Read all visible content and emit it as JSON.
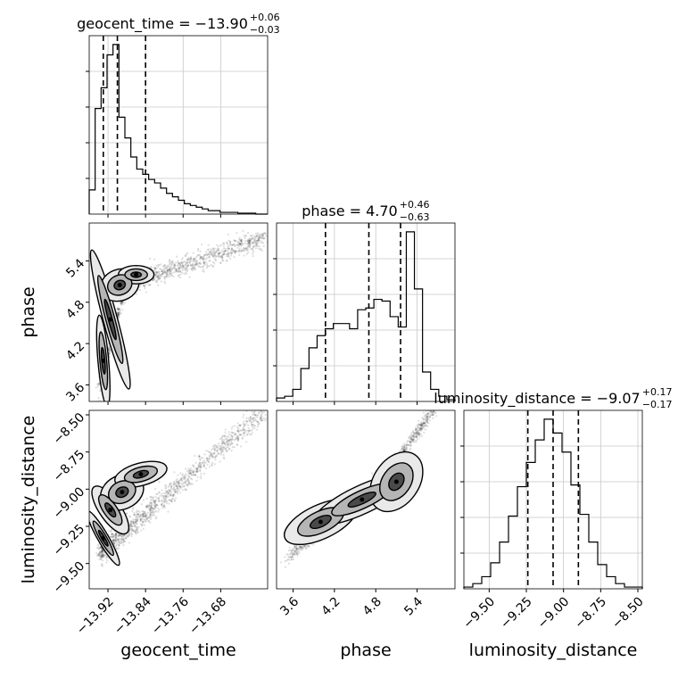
{
  "chart_data": {
    "type": "corner",
    "parameters": [
      "geocent_time",
      "phase",
      "luminosity_distance"
    ],
    "axis_labels": {
      "geocent_time": "geocent_time",
      "phase": "phase",
      "luminosity_distance": "luminosity_distance"
    },
    "ranges": {
      "geocent_time": [
        -13.96,
        -13.58
      ],
      "phase": [
        3.36,
        5.95
      ],
      "luminosity_distance": [
        -9.67,
        -8.47
      ]
    },
    "ticks": {
      "geocent_time": [
        -13.92,
        -13.84,
        -13.76,
        -13.68
      ],
      "phase": [
        3.6,
        4.2,
        4.8,
        5.4
      ],
      "luminosity_distance": [
        -9.5,
        -9.25,
        -9.0,
        -8.75,
        -8.5
      ]
    },
    "tick_labels": {
      "geocent_time": [
        "−13.92",
        "−13.84",
        "−13.76",
        "−13.68"
      ],
      "phase": [
        "3.6",
        "4.2",
        "4.8",
        "5.4"
      ],
      "luminosity_distance": [
        "−9.50",
        "−9.25",
        "−9.00",
        "−8.75",
        "−8.50"
      ]
    },
    "titles": {
      "geocent_time": {
        "text": "geocent_time = −13.90",
        "sup": "+0.06",
        "sub": "−0.03"
      },
      "phase": {
        "text": "phase = 4.70",
        "sup": "+0.46",
        "sub": "−0.63"
      },
      "luminosity_distance": {
        "text": "luminosity_distance = −9.07",
        "sup": "+0.17",
        "sub": "−0.17"
      }
    },
    "quantiles": {
      "geocent_time": [
        -13.93,
        -13.9,
        -13.84
      ],
      "phase": [
        4.07,
        4.7,
        5.16
      ],
      "luminosity_distance": [
        -9.24,
        -9.07,
        -8.9
      ]
    },
    "histograms": {
      "geocent_time": [
        0.14,
        0.61,
        0.73,
        0.92,
        0.98,
        0.56,
        0.44,
        0.33,
        0.26,
        0.23,
        0.2,
        0.18,
        0.15,
        0.12,
        0.1,
        0.08,
        0.06,
        0.05,
        0.04,
        0.03,
        0.02,
        0.02,
        0.01,
        0.01,
        0.01,
        0.005,
        0.005,
        0.005,
        0.0,
        0.0
      ],
      "phase": [
        0.02,
        0.03,
        0.07,
        0.19,
        0.31,
        0.38,
        0.42,
        0.45,
        0.45,
        0.42,
        0.53,
        0.54,
        0.59,
        0.58,
        0.49,
        0.43,
        0.98,
        0.65,
        0.17,
        0.07,
        0.03,
        0.01
      ],
      "luminosity_distance": [
        0.01,
        0.03,
        0.07,
        0.15,
        0.27,
        0.42,
        0.59,
        0.73,
        0.86,
        0.98,
        0.9,
        0.79,
        0.6,
        0.43,
        0.27,
        0.14,
        0.07,
        0.03,
        0.01,
        0.01
      ]
    },
    "grid": true
  }
}
